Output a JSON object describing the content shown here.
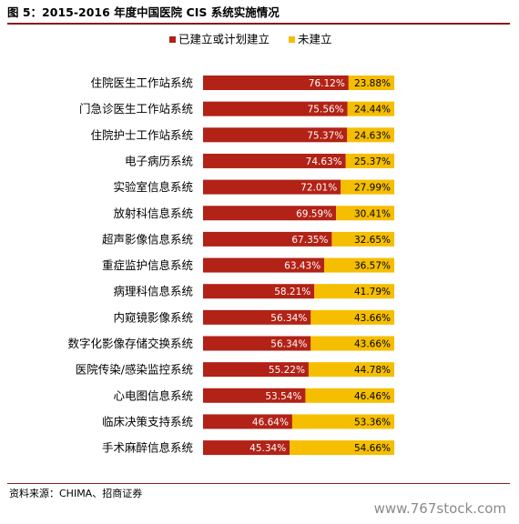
{
  "header": {
    "title": "图 5：2015-2016 年度中国医院 CIS 系统实施情况"
  },
  "footer": {
    "source": "资料来源：CHIMA、招商证券",
    "watermark": "www.767stock.com"
  },
  "colors": {
    "built": "#b22216",
    "not_built": "#f5be00",
    "rule": "#8b1a1a"
  },
  "chart_data": {
    "type": "bar",
    "orientation": "horizontal",
    "stacked": true,
    "legend_position": "top-right",
    "grid": false,
    "xlim": [
      0,
      100
    ],
    "categories": [
      "住院医生工作站系统",
      "门急诊医生工作站系统",
      "住院护士工作站系统",
      "电子病历系统",
      "实验室信息系统",
      "放射科信息系统",
      "超声影像信息系统",
      "重症监护信息系统",
      "病理科信息系统",
      "内窥镜影像系统",
      "数字化影像存储交换系统",
      "医院传染/感染监控系统",
      "心电图信息系统",
      "临床决策支持系统",
      "手术麻醉信息系统"
    ],
    "series": [
      {
        "name": "已建立或计划建立",
        "values": [
          76.12,
          75.56,
          75.37,
          74.63,
          72.01,
          69.59,
          67.35,
          63.43,
          58.21,
          56.34,
          56.34,
          55.22,
          53.54,
          46.64,
          45.34
        ],
        "labels": [
          "76.12%",
          "75.56%",
          "75.37%",
          "74.63%",
          "72.01%",
          "69.59%",
          "67.35%",
          "63.43%",
          "58.21%",
          "56.34%",
          "56.34%",
          "55.22%",
          "53.54%",
          "46.64%",
          "45.34%"
        ]
      },
      {
        "name": "未建立",
        "values": [
          23.88,
          24.44,
          24.63,
          25.37,
          27.99,
          30.41,
          32.65,
          36.57,
          41.79,
          43.66,
          43.66,
          44.78,
          46.46,
          53.36,
          54.66
        ],
        "labels": [
          "23.88%",
          "24.44%",
          "24.63%",
          "25.37%",
          "27.99%",
          "30.41%",
          "32.65%",
          "36.57%",
          "41.79%",
          "43.66%",
          "43.66%",
          "44.78%",
          "46.46%",
          "53.36%",
          "54.66%"
        ]
      }
    ]
  }
}
